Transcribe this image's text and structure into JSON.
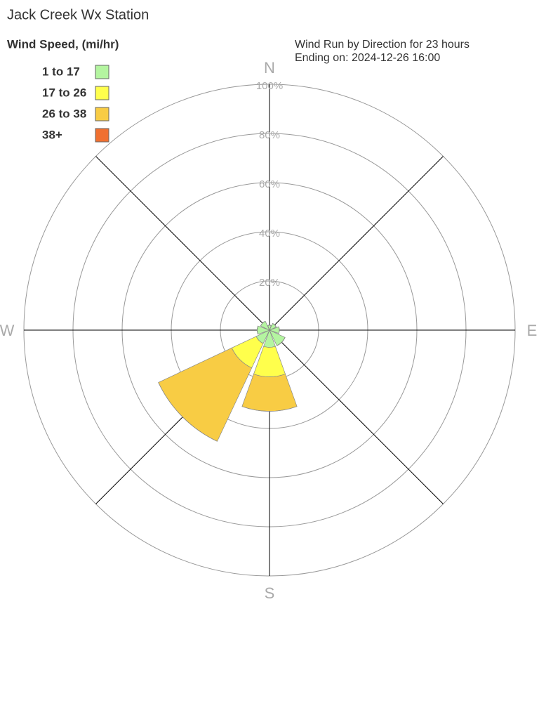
{
  "chart_data": {
    "type": "windrose",
    "title": "Jack Creek Wx Station",
    "legend_title": "Wind Speed, (mi/hr)",
    "subtitle": [
      "Wind Run by Direction for 23 hours",
      "Ending on: 2024-12-26 16:00"
    ],
    "categories": [
      "N",
      null,
      "E",
      null,
      "S",
      null,
      "W",
      null
    ],
    "ylim": [
      0,
      100
    ],
    "yticks": [
      {
        "value": 20,
        "label": "20%"
      },
      {
        "value": 40,
        "label": "40%"
      },
      {
        "value": 60,
        "label": "60%"
      },
      {
        "value": 80,
        "label": "80%"
      },
      {
        "value": 100,
        "label": "100%"
      }
    ],
    "grid": true,
    "legend": "top-left",
    "series": [
      {
        "name": "1 to 17",
        "color": "#b4f5a0",
        "values": [
          2,
          3,
          4,
          7,
          7,
          6,
          5,
          4
        ]
      },
      {
        "name": "17 to 26",
        "color": "#ffff4c",
        "values": [
          0,
          0,
          0,
          0,
          12,
          11,
          0,
          0
        ]
      },
      {
        "name": "26 to 38",
        "color": "#f8cc44",
        "values": [
          0,
          0,
          0,
          0,
          14,
          33,
          0,
          0
        ]
      },
      {
        "name": "38+",
        "color": "#f07030",
        "values": [
          0,
          0,
          0,
          0,
          0,
          0,
          0,
          0
        ]
      }
    ]
  }
}
